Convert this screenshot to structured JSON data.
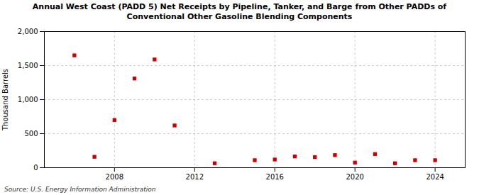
{
  "chart_data": {
    "type": "scatter",
    "title": "Annual West Coast (PADD 5) Net Receipts by Pipeline, Tanker, and Barge from Other PADDs of",
    "subtitle": "Conventional Other Gasoline Blending Components",
    "ylabel": "Thousand Barrels",
    "source": "Source: U.S. Energy Information Administration",
    "x": [
      2006,
      2007,
      2008,
      2009,
      2010,
      2011,
      2013,
      2015,
      2016,
      2017,
      2018,
      2019,
      2020,
      2021,
      2022,
      2023,
      2024
    ],
    "values": [
      1650,
      160,
      700,
      1310,
      1590,
      620,
      65,
      110,
      120,
      165,
      155,
      185,
      75,
      200,
      65,
      110,
      110
    ],
    "color": "#cc0000",
    "marker": "square",
    "xlim": [
      2004.5,
      2025.5
    ],
    "ylim": [
      0,
      2000
    ],
    "xticks": [
      2008,
      2012,
      2016,
      2020,
      2024
    ],
    "yticks": [
      0,
      500,
      {
        "value": 1000,
        "label": "1,000"
      },
      {
        "value": 1500,
        "label": "1,500"
      },
      {
        "value": 2000,
        "label": "2,000"
      }
    ],
    "grid": true
  }
}
